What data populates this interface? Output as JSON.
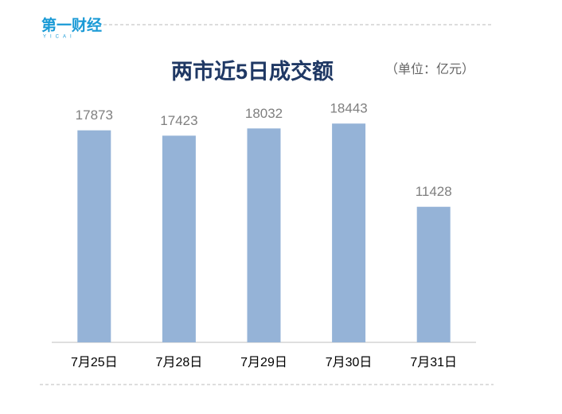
{
  "logo": {
    "name": "第一财经",
    "sub": "YICAI"
  },
  "chart_data": {
    "type": "bar",
    "title": "两市近5日成交额",
    "unit_note": "（单位：亿元）",
    "categories": [
      "7月25日",
      "7月28日",
      "7月29日",
      "7月30日",
      "7月31日"
    ],
    "values": [
      17873,
      17423,
      18032,
      18443,
      11428
    ],
    "color": "#95b3d7",
    "ylim": [
      0,
      20000
    ]
  }
}
